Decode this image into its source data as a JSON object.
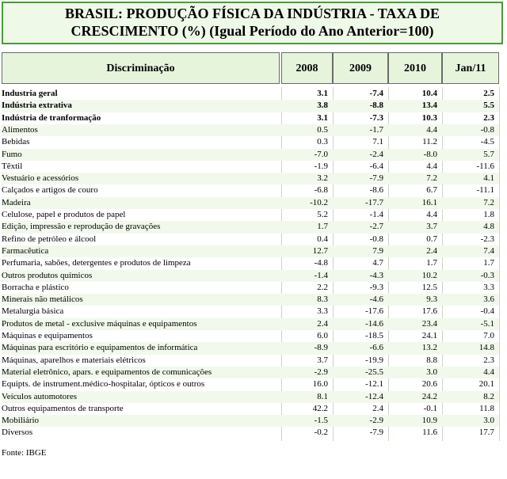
{
  "title": [
    "BRASIL:  PRODUÇÃO FÍSICA DA INDÚSTRIA - TAXA DE",
    "CRESCIMENTO (%)   (Igual Período do Ano Anterior=100)"
  ],
  "table": {
    "header": [
      "Discriminação",
      "2008",
      "2009",
      "2010",
      "Jan/11"
    ],
    "rows": [
      [
        "Industria geral",
        "3.1",
        "-7.4",
        "10.4",
        "2.5"
      ],
      [
        "Indústria extrativa",
        "3.8",
        "-8.8",
        "13.4",
        "5.5"
      ],
      [
        "Indústria de tranformação",
        "3.1",
        "-7.3",
        "10.3",
        "2.3"
      ],
      [
        "Alimentos",
        "0.5",
        "-1.7",
        "4.4",
        "-0.8"
      ],
      [
        "Bebidas",
        "0.3",
        "7.1",
        "11.2",
        "-4.5"
      ],
      [
        "Fumo",
        "-7.0",
        "-2.4",
        "-8.0",
        "5.7"
      ],
      [
        "Têxtil",
        "-1.9",
        "-6.4",
        "4.4",
        "-11.6"
      ],
      [
        "Vestuário e acessórios",
        "3.2",
        "-7.9",
        "7.2",
        "4.1"
      ],
      [
        "Calçados e artigos de couro",
        "-6.8",
        "-8.6",
        "6.7",
        "-11.1"
      ],
      [
        "Madeira",
        "-10.2",
        "-17.7",
        "16.1",
        "7.2"
      ],
      [
        "Celulose, papel e produtos de papel",
        "5.2",
        "-1.4",
        "4.4",
        "1.8"
      ],
      [
        "Edição, impressão e reprodução de gravações",
        "1.7",
        "-2.7",
        "3.7",
        "4.8"
      ],
      [
        "Refino de petróleo e álcool",
        "0.4",
        "-0.8",
        "0.7",
        "-2.3"
      ],
      [
        "Farmacêutica",
        "12.7",
        "7.9",
        "2.4",
        "7.4"
      ],
      [
        "Perfumaria, sabões, detergentes e produtos de limpeza",
        "-4.8",
        "4.7",
        "1.7",
        "1.7"
      ],
      [
        "Outros produtos químicos",
        "-1.4",
        "-4.3",
        "10.2",
        "-0.3"
      ],
      [
        "Borracha e plástico",
        "2.2",
        "-9.3",
        "12.5",
        "3.3"
      ],
      [
        "Minerais não metálicos",
        "8.3",
        "-4.6",
        "9.3",
        "3.6"
      ],
      [
        "Metalurgia básica",
        "3.3",
        "-17.6",
        "17.6",
        "-0.4"
      ],
      [
        "Produtos de metal - exclusive máquinas e equipamentos",
        "2.4",
        "-14.6",
        "23.4",
        "-5.1"
      ],
      [
        "Máquinas e equipamentos",
        "6.0",
        "-18.5",
        "24.1",
        "7.0"
      ],
      [
        "Máquinas para escritório e equipamentos de informática",
        "-8.9",
        "-6.6",
        "13.2",
        "14.8"
      ],
      [
        "Máquinas, aparelhos e materiais elétricos",
        "3.7",
        "-19.9",
        "8.8",
        "2.3"
      ],
      [
        "Material eletrônico, apars. e equipamentos de comunicações",
        "-2.9",
        "-25.5",
        "3.0",
        "4.4"
      ],
      [
        "Equipts. de instrument.médico-hospitalar, ópticos e outros",
        "16.0",
        "-12.1",
        "20.6",
        "20.1"
      ],
      [
        "Veículos automotores",
        "8.1",
        "-12.4",
        "24.2",
        "8.2"
      ],
      [
        "Outros equipamentos de transporte",
        "42.2",
        "2.4",
        "-0.1",
        "11.8"
      ],
      [
        "Mobiliário",
        "-1.5",
        "-2.9",
        "10.9",
        "3.0"
      ],
      [
        "Diversos",
        "-0.2",
        "-7.9",
        "11.6",
        "17.7"
      ]
    ]
  },
  "source": "Fonte: IBGE"
}
